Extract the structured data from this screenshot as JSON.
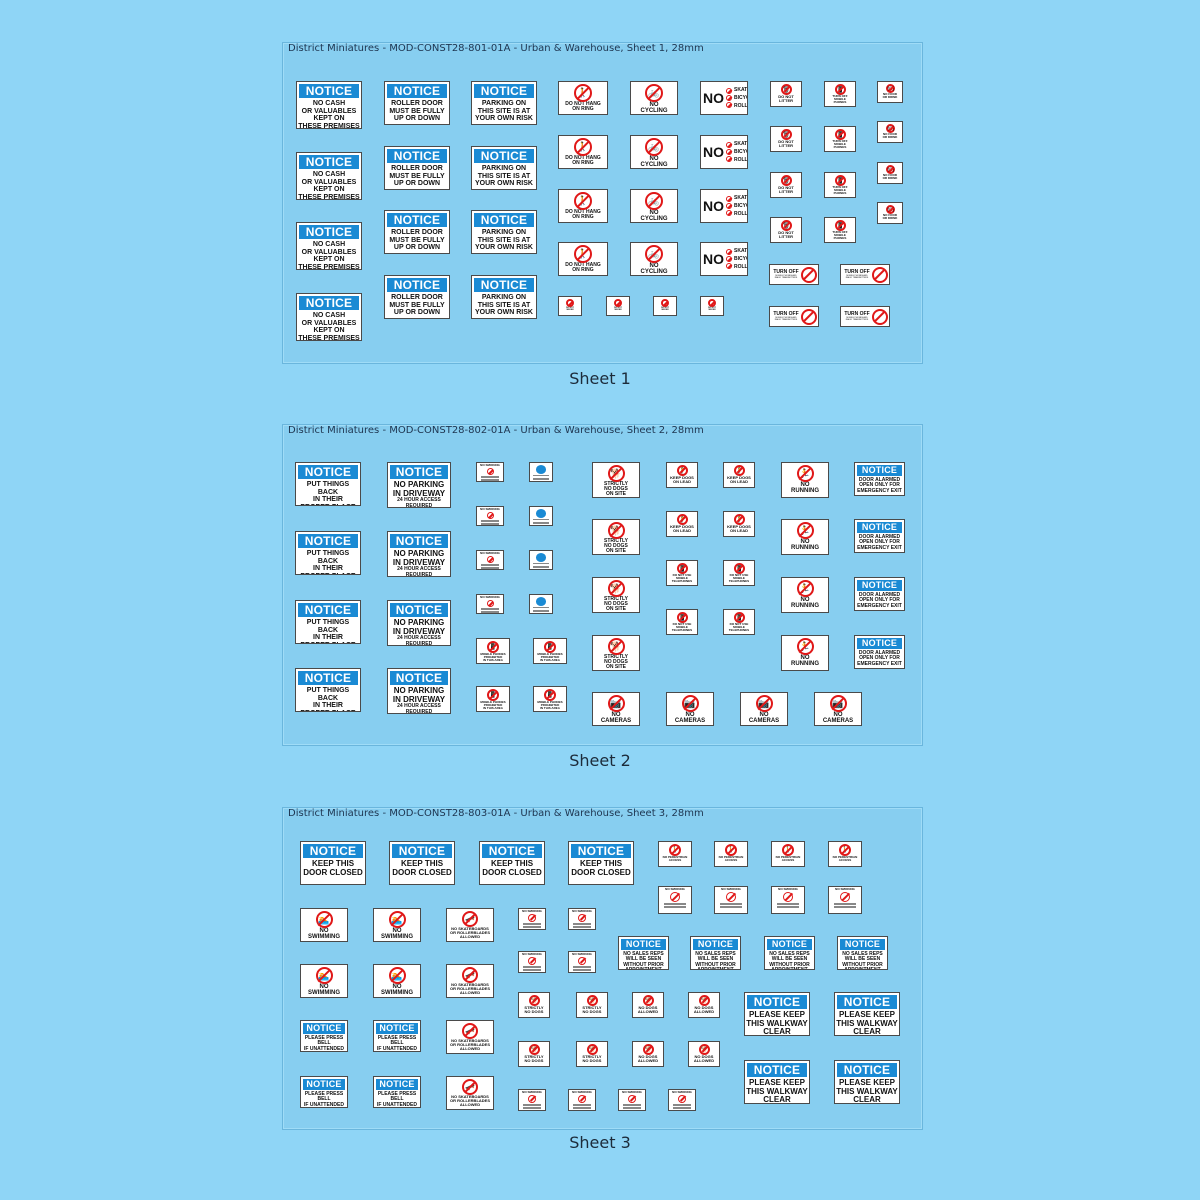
{
  "sheets": [
    {
      "title": "District Miniatures - MOD-CONST28-801-01A - Urban & Warehouse, Sheet 1, 28mm",
      "caption": "Sheet 1"
    },
    {
      "title": "District Miniatures - MOD-CONST28-802-01A - Urban & Warehouse, Sheet 2, 28mm",
      "caption": "Sheet 2"
    },
    {
      "title": "District Miniatures - MOD-CONST28-803-01A - Urban & Warehouse, Sheet 3, 28mm",
      "caption": "Sheet 3"
    }
  ],
  "signs": {
    "notice": "NOTICE",
    "no_cash": "NO CASH\nOR VALUABLES\nKEPT ON\nTHESE PREMISES",
    "roller_door": "ROLLER DOOR\nMUST BE FULLY\nUP OR DOWN",
    "parking": "PARKING ON\nTHIS SITE IS AT\nYOUR OWN RISK",
    "no_hang": "DO NOT HANG\nON RING",
    "no_cycling": "NO\nCYCLING",
    "skateboards_no": "NO",
    "skateboards_list": "SKATEBOARDS\nBICYCLES\nROLLERBLADES",
    "no_litter": "DO NOT\nLITTER",
    "turn_off_small": "TURN OFF\nMOBILE\nPHONES",
    "no_food": "NO FOOD\nOR DRINK",
    "turn_off": "TURN OFF",
    "turn_off_sub": "MOBILE PHONES AND\nRADIO TRANSMITTERS",
    "no_smoking_short": "DO NOT\nSMOKE",
    "put_back": "PUT THINGS BACK\nIN THEIR\nPROPER PLACE",
    "no_parking_main": "NO PARKING\nIN DRIVEWAY",
    "no_parking_sub": "24 HOUR ACCESS\nREQUIRED",
    "strictly_no_dogs_site": "STRICTLY\nNO DOGS\nON SITE",
    "keep_dogs": "KEEP DOGS\nON LEAD",
    "do_not_use_phones": "DO NOT USE\nMOBILE\nTELEPHONES",
    "no_running": "NO\nRUNNING",
    "door_alarmed": "DOOR ALARMED\nOPEN ONLY FOR\nEMERGENCY EXIT",
    "mobile_prohibited": "MOBILE PHONES\nPROHIBITED\nIN THIS AREA",
    "no_cameras": "NO\nCAMERAS",
    "keep_door_closed": "KEEP THIS\nDOOR CLOSED",
    "no_pedestrian": "NO PEDESTRIAN\nACCESS",
    "no_smoking_hdr": "NO SMOKING",
    "no_swimming": "NO\nSWIMMING",
    "no_skate_allowed": "NO SKATEBOARDS\nOR ROLLERBLADES\nALLOWED",
    "no_sales": "NO SALES REPS\nWILL BE SEEN\nWITHOUT PRIOR\nAPPOINTMENT",
    "press_bell": "PLEASE PRESS BELL\nIF UNATTENDED",
    "strictly_no_dogs": "STRICTLY\nNO DOGS",
    "no_dogs_allowed": "NO DOGS\nALLOWED",
    "keep_walkway": "PLEASE KEEP\nTHIS WALKWAY\nCLEAR"
  }
}
